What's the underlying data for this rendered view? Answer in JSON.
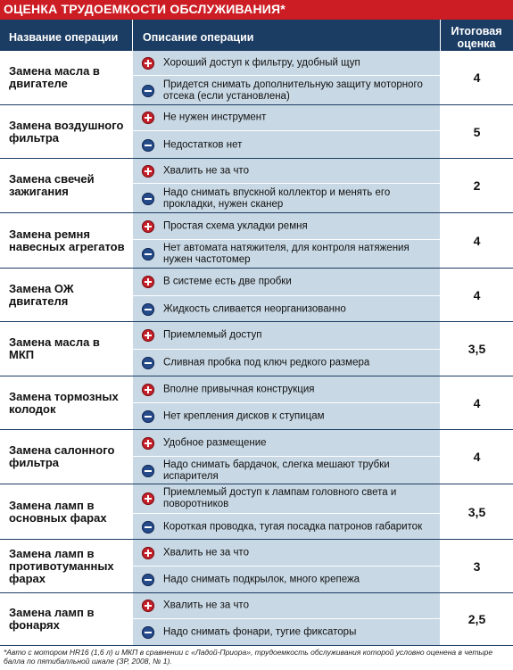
{
  "title": "ОЦЕНКА ТРУДОЕМКОСТИ ОБСЛУЖИВАНИЯ*",
  "headers": {
    "name": "Название операции",
    "description": "Описание операции",
    "score_line1": "Итоговая",
    "score_line2": "оценка"
  },
  "icons": {
    "plus": "plus-circle-icon",
    "minus": "minus-circle-icon"
  },
  "colors": {
    "banner": "#cc1d24",
    "header": "#1c3d63",
    "row_bg": "#c8d8e4",
    "plus": "#c4202a",
    "minus": "#264b8a"
  },
  "rows": [
    {
      "name": "Замена масла в двигателе",
      "plus": "Хороший доступ к фильтру, удобный щуп",
      "minus": "Придется снимать дополнительную защиту моторного отсека (если установлена)",
      "score": "4"
    },
    {
      "name": "Замена воздушного фильтра",
      "plus": "Не нужен инструмент",
      "minus": "Недостатков нет",
      "score": "5"
    },
    {
      "name": "Замена свечей зажигания",
      "plus": "Хвалить не за что",
      "minus": "Надо снимать впускной коллектор и менять его прокладки, нужен сканер",
      "score": "2"
    },
    {
      "name": "Замена ремня навесных агрегатов",
      "plus": "Простая схема укладки ремня",
      "minus": "Нет автомата натяжителя, для контроля натяжения нужен частотомер",
      "score": "4"
    },
    {
      "name": "Замена ОЖ двигателя",
      "plus": "В системе есть две пробки",
      "minus": "Жидкость сливается неорганизованно",
      "score": "4"
    },
    {
      "name": "Замена масла в МКП",
      "plus": "Приемлемый доступ",
      "minus": "Сливная пробка под ключ редкого размера",
      "score": "3,5"
    },
    {
      "name": "Замена тормозных колодок",
      "plus": "Вполне привычная конструкция",
      "minus": "Нет крепления дисков к ступицам",
      "score": "4"
    },
    {
      "name": "Замена салонного фильтра",
      "plus": "Удобное размещение",
      "minus": "Надо снимать бардачок, слегка мешают трубки испарителя",
      "score": "4"
    },
    {
      "name": "Замена ламп в основных фарах",
      "plus": "Приемлемый доступ к лампам головного света и поворотников",
      "minus": "Короткая проводка, тугая посадка патронов габариток",
      "score": "3,5"
    },
    {
      "name": "Замена ламп в противотуманных фарах",
      "plus": "Хвалить не за что",
      "minus": "Надо снимать подкрылок, много крепежа",
      "score": "3"
    },
    {
      "name": "Замена ламп в фонарях",
      "plus": "Хвалить не за что",
      "minus": "Надо снимать фонари, тугие фиксаторы",
      "score": "2,5"
    }
  ],
  "footnote": "*Авто с мотором HR16 (1,6 л) и МКП в сравнении с «Ладой-Приора», трудоемкость обслуживания которой условно оценена в четыре балла по пятибалльной шкале (ЗР, 2008, № 1)."
}
